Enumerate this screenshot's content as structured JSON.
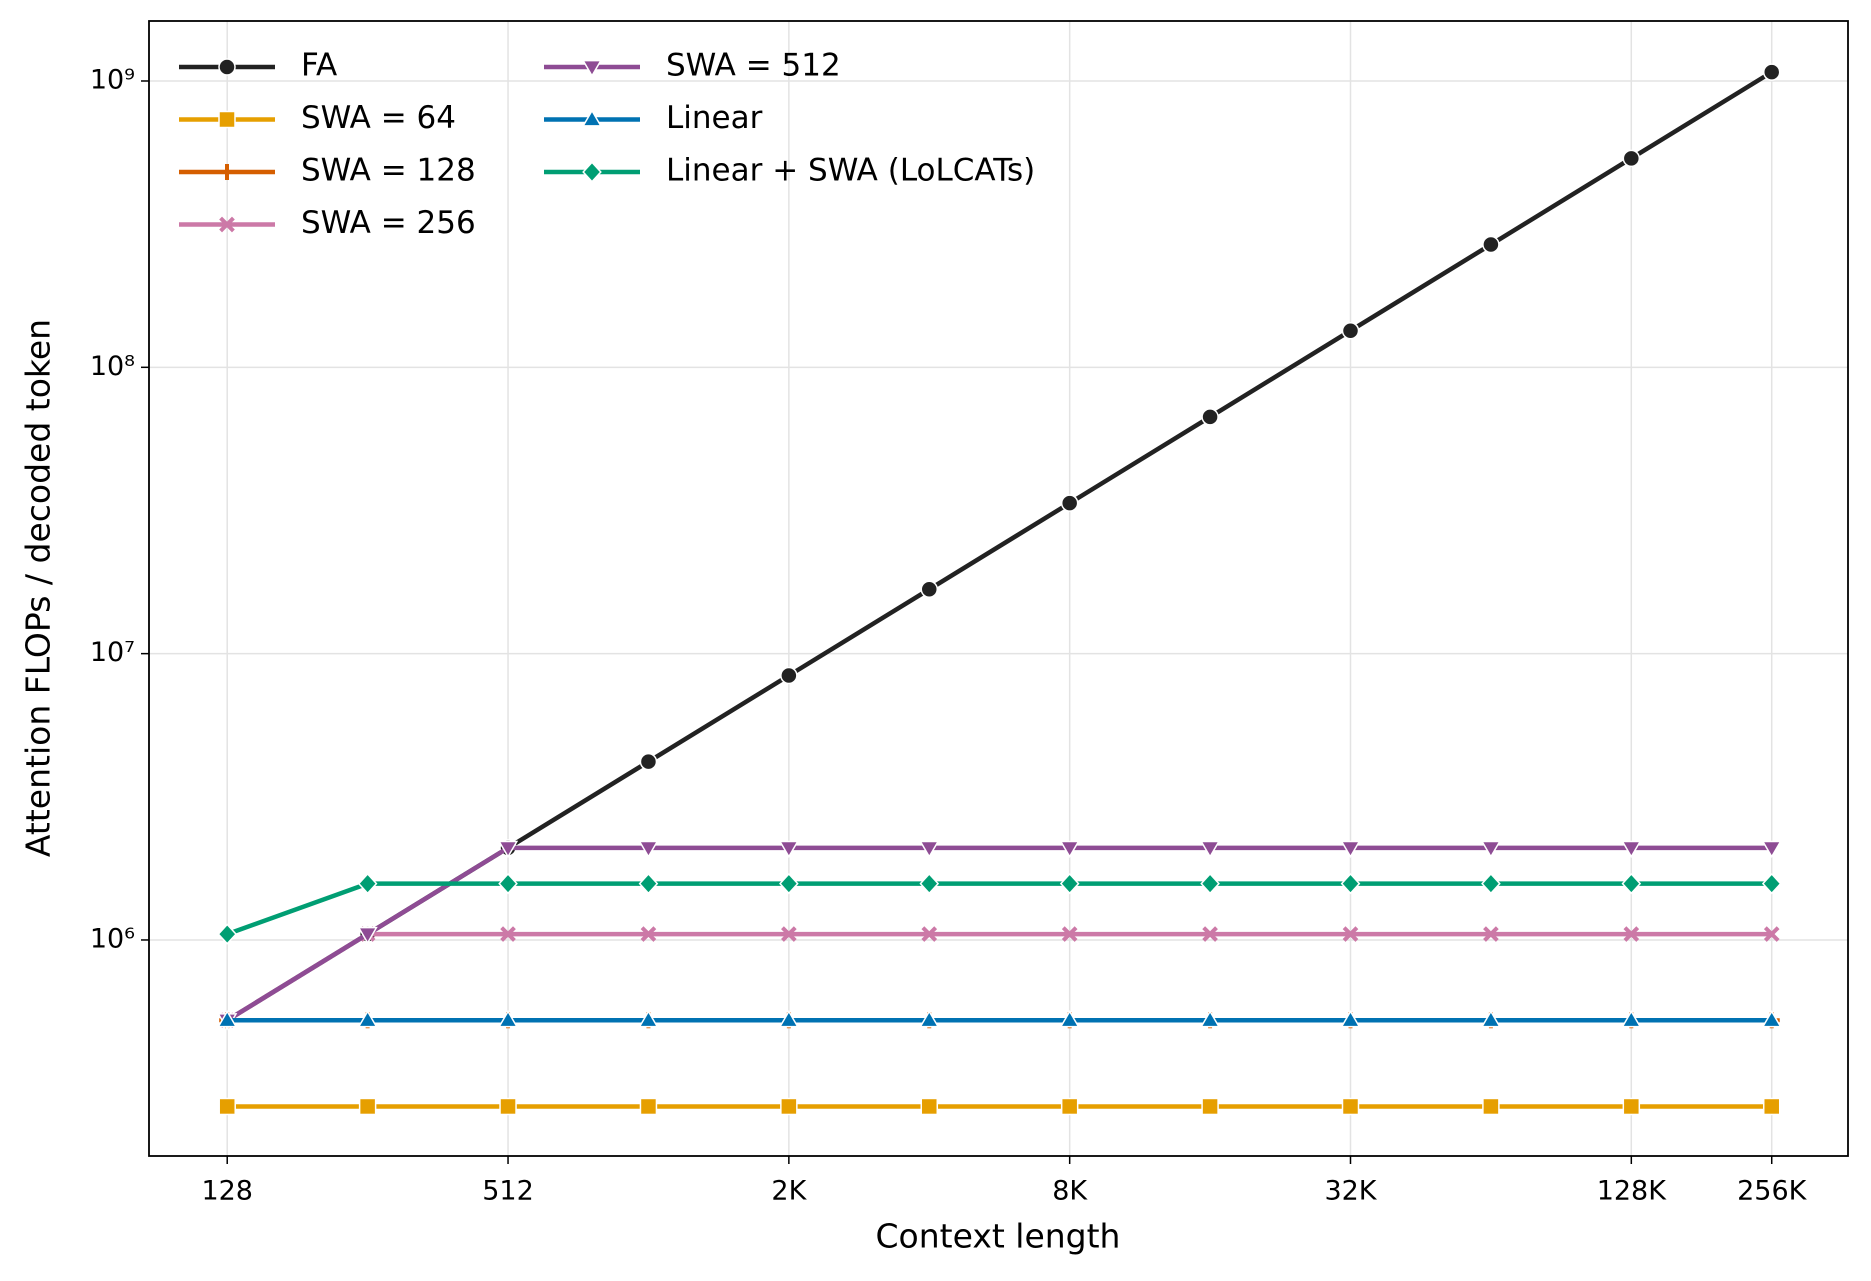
{
  "chart_data": {
    "type": "line",
    "xlabel": "Context length",
    "ylabel": "Attention FLOPs / decoded token",
    "x": [
      128,
      256,
      512,
      1024,
      2048,
      4096,
      8192,
      16384,
      32768,
      65536,
      131072,
      262144
    ],
    "xscale": "log",
    "yscale": "log",
    "grid": true,
    "legend": "upper left",
    "xlim": [
      87,
      382000
    ],
    "ylim": [
      176000,
      1620000000
    ],
    "xticks": [
      128,
      512,
      {
        "value": 2048,
        "label": "2K"
      },
      {
        "value": 8192,
        "label": "8K"
      },
      {
        "value": 32768,
        "label": "32K"
      },
      {
        "value": 131072,
        "label": "128K"
      },
      {
        "value": 262144,
        "label": "256K"
      }
    ],
    "yticks": [
      {
        "value": 1000000,
        "label": "10⁶"
      },
      {
        "value": 10000000,
        "label": "10⁷"
      },
      {
        "value": 100000000,
        "label": "10⁸"
      },
      {
        "value": 1000000000,
        "label": "10⁹"
      }
    ],
    "series": [
      {
        "name": "FA",
        "color": "#222222",
        "marker": "circle",
        "values": [
          524288,
          1048576,
          2097152,
          4194304,
          8388608,
          16777216,
          33554432,
          67108864,
          134217728,
          268435456,
          536870912,
          1073741824
        ]
      },
      {
        "name": "SWA = 64",
        "color": "#E69F00",
        "marker": "square",
        "values": [
          262144,
          262144,
          262144,
          262144,
          262144,
          262144,
          262144,
          262144,
          262144,
          262144,
          262144,
          262144
        ]
      },
      {
        "name": "SWA = 128",
        "color": "#D55E00",
        "marker": "plus",
        "values": [
          524288,
          524288,
          524288,
          524288,
          524288,
          524288,
          524288,
          524288,
          524288,
          524288,
          524288,
          524288
        ]
      },
      {
        "name": "SWA = 256",
        "color": "#CC79A7",
        "marker": "x",
        "values": [
          524288,
          1048576,
          1048576,
          1048576,
          1048576,
          1048576,
          1048576,
          1048576,
          1048576,
          1048576,
          1048576,
          1048576
        ]
      },
      {
        "name": "SWA = 512",
        "color": "#8E4C94",
        "marker": "tridown",
        "values": [
          524288,
          1048576,
          2097152,
          2097152,
          2097152,
          2097152,
          2097152,
          2097152,
          2097152,
          2097152,
          2097152,
          2097152
        ]
      },
      {
        "name": "Linear",
        "color": "#0072B2",
        "marker": "triup",
        "values": [
          524288,
          524288,
          524288,
          524288,
          524288,
          524288,
          524288,
          524288,
          524288,
          524288,
          524288,
          524288
        ]
      },
      {
        "name": "Linear + SWA (LoLCATs)",
        "color": "#009E73",
        "marker": "diamond",
        "values": [
          1048576,
          1572864,
          1572864,
          1572864,
          1572864,
          1572864,
          1572864,
          1572864,
          1572864,
          1572864,
          1572864,
          1572864
        ]
      }
    ]
  }
}
